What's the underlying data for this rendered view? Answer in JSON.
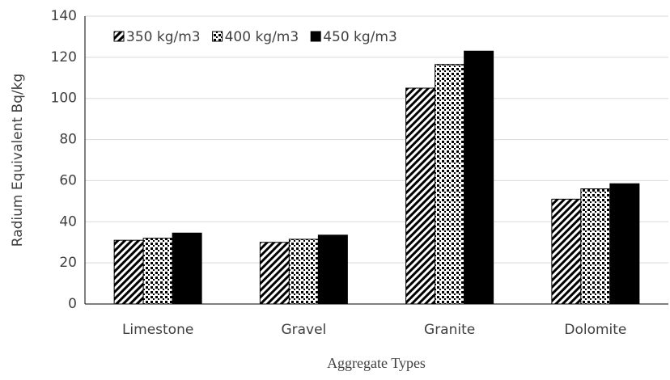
{
  "chart_data": {
    "type": "bar",
    "y_label": "Radium Equivalent  Bq/kg",
    "x_label": "Aggregate Types",
    "categories": [
      "Limestone",
      "Gravel",
      "Granite",
      "Dolomite"
    ],
    "series": [
      {
        "name": "350 kg/m3",
        "color": "#000000",
        "pattern": "diagonal",
        "values": [
          31,
          30,
          105,
          51
        ]
      },
      {
        "name": "400 kg/m3",
        "color": "#000000",
        "pattern": "dots",
        "values": [
          32,
          31.5,
          116.5,
          56
        ]
      },
      {
        "name": "450 kg/m3",
        "color": "#000000",
        "pattern": "solid",
        "values": [
          34.5,
          33.5,
          123,
          58.5
        ]
      }
    ],
    "ylim": [
      0,
      140
    ],
    "yticks": [
      0,
      20,
      40,
      60,
      80,
      100,
      120,
      140
    ],
    "grid": true,
    "legend": "top-left"
  }
}
